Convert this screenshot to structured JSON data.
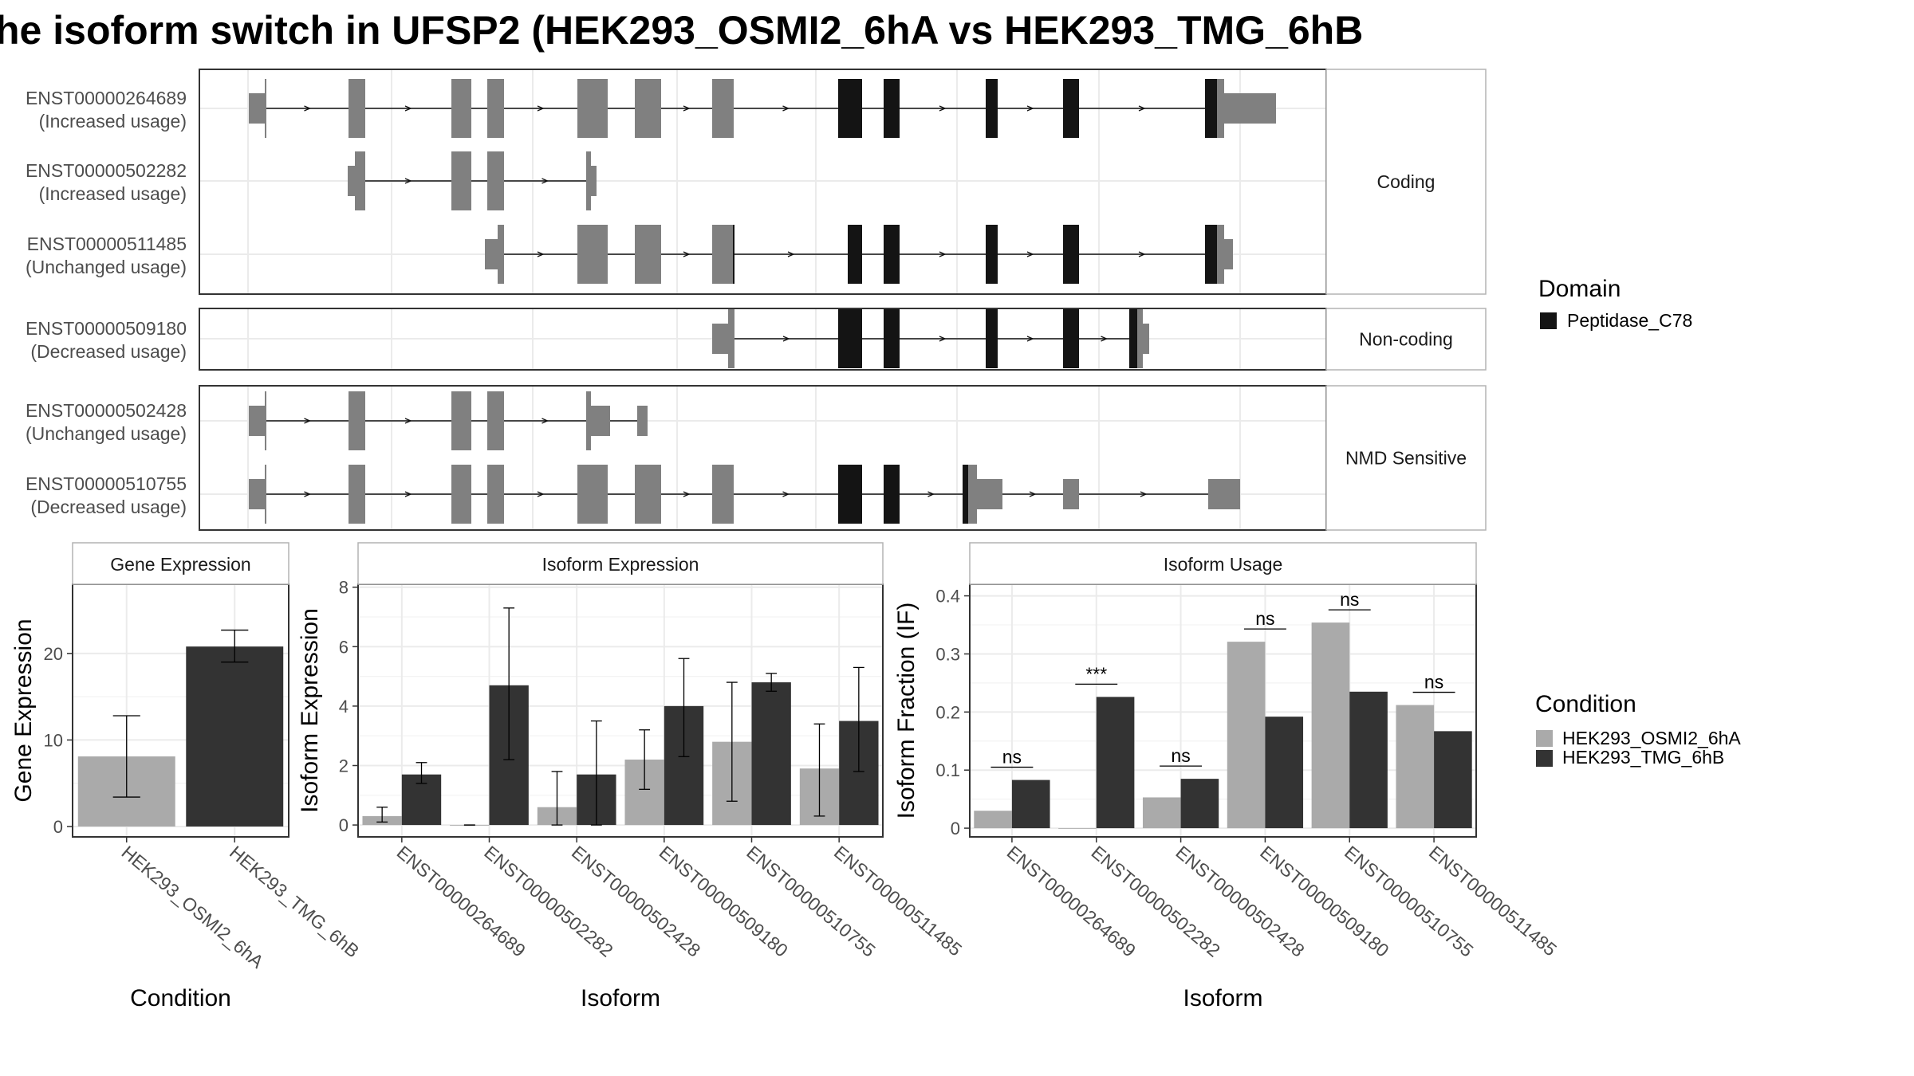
{
  "title": "he isoform switch in UFSP2 (HEK293_OSMI2_6hA vs HEK293_TMG_6hB",
  "colors": {
    "exon": "#808080",
    "domain": "#141414",
    "panel_border": "#333333",
    "strip_bg": "#ffffff",
    "strip_border": "#b3b3b3",
    "grid": "#ebebeb",
    "cond1": "#aaaaaa",
    "cond2": "#333333"
  },
  "structure": {
    "sections": [
      {
        "label": "Coding",
        "transcripts": [
          {
            "id": "ENST00000264689",
            "usage": "(Increased usage)"
          },
          {
            "id": "ENST00000502282",
            "usage": "(Increased usage)"
          },
          {
            "id": "ENST00000511485",
            "usage": "(Unchanged usage)"
          }
        ]
      },
      {
        "label": "Non-coding",
        "transcripts": [
          {
            "id": "ENST00000509180",
            "usage": "(Decreased usage)"
          }
        ]
      },
      {
        "label": "NMD Sensitive",
        "transcripts": [
          {
            "id": "ENST00000502428",
            "usage": "(Unchanged usage)"
          },
          {
            "id": "ENST00000510755",
            "usage": "(Decreased usage)"
          }
        ]
      }
    ]
  },
  "domain_legend": {
    "title": "Domain",
    "items": [
      "Peptidase_C78"
    ]
  },
  "condition_legend": {
    "title": "Condition",
    "items": [
      "HEK293_OSMI2_6hA",
      "HEK293_TMG_6hB"
    ]
  },
  "chart_data": [
    {
      "type": "bar",
      "title": "Gene Expression",
      "xlabel": "Condition",
      "ylabel": "Gene Expression",
      "ylim": [
        -1.2,
        28
      ],
      "yticks": [
        0,
        10,
        20
      ],
      "categories": [
        "HEK293_OSMI2_6hA",
        "HEK293_TMG_6hB"
      ],
      "values": [
        8.1,
        20.8
      ],
      "errors": [
        [
          3.4,
          12.8
        ],
        [
          19.0,
          22.7
        ]
      ]
    },
    {
      "type": "bar",
      "title": "Isoform Expression",
      "xlabel": "Isoform",
      "ylabel": "Isoform Expression",
      "ylim": [
        -0.4,
        8.1
      ],
      "yticks": [
        0,
        2,
        4,
        6,
        8
      ],
      "categories": [
        "ENST00000264689",
        "ENST00000502282",
        "ENST00000502428",
        "ENST00000509180",
        "ENST00000510755",
        "ENST00000511485"
      ],
      "series": [
        {
          "name": "HEK293_OSMI2_6hA",
          "values": [
            0.3,
            0.0,
            0.6,
            2.2,
            2.8,
            1.9
          ],
          "errors": [
            [
              0.1,
              0.6
            ],
            [
              0.0,
              0.0
            ],
            [
              0.0,
              1.8
            ],
            [
              1.2,
              3.2
            ],
            [
              0.8,
              4.8
            ],
            [
              0.3,
              3.4
            ]
          ]
        },
        {
          "name": "HEK293_TMG_6hB",
          "values": [
            1.7,
            4.7,
            1.7,
            4.0,
            4.8,
            3.5
          ],
          "errors": [
            [
              1.4,
              2.1
            ],
            [
              2.2,
              7.3
            ],
            [
              0.0,
              3.5
            ],
            [
              2.3,
              5.6
            ],
            [
              4.5,
              5.1
            ],
            [
              1.8,
              5.3
            ]
          ]
        }
      ]
    },
    {
      "type": "bar",
      "title": "Isoform Usage",
      "xlabel": "Isoform",
      "ylabel": "Isoform Fraction (IF)",
      "ylim": [
        -0.015,
        0.42
      ],
      "yticks": [
        0.0,
        0.1,
        0.2,
        0.3,
        0.4
      ],
      "categories": [
        "ENST00000264689",
        "ENST00000502282",
        "ENST00000502428",
        "ENST00000509180",
        "ENST00000510755",
        "ENST00000511485"
      ],
      "series": [
        {
          "name": "HEK293_OSMI2_6hA",
          "values": [
            0.03,
            0.0,
            0.053,
            0.321,
            0.354,
            0.212
          ]
        },
        {
          "name": "HEK293_TMG_6hB",
          "values": [
            0.083,
            0.226,
            0.085,
            0.192,
            0.235,
            0.167
          ]
        }
      ],
      "significance": [
        "ns",
        "***",
        "ns",
        "ns",
        "ns",
        "ns"
      ]
    }
  ]
}
